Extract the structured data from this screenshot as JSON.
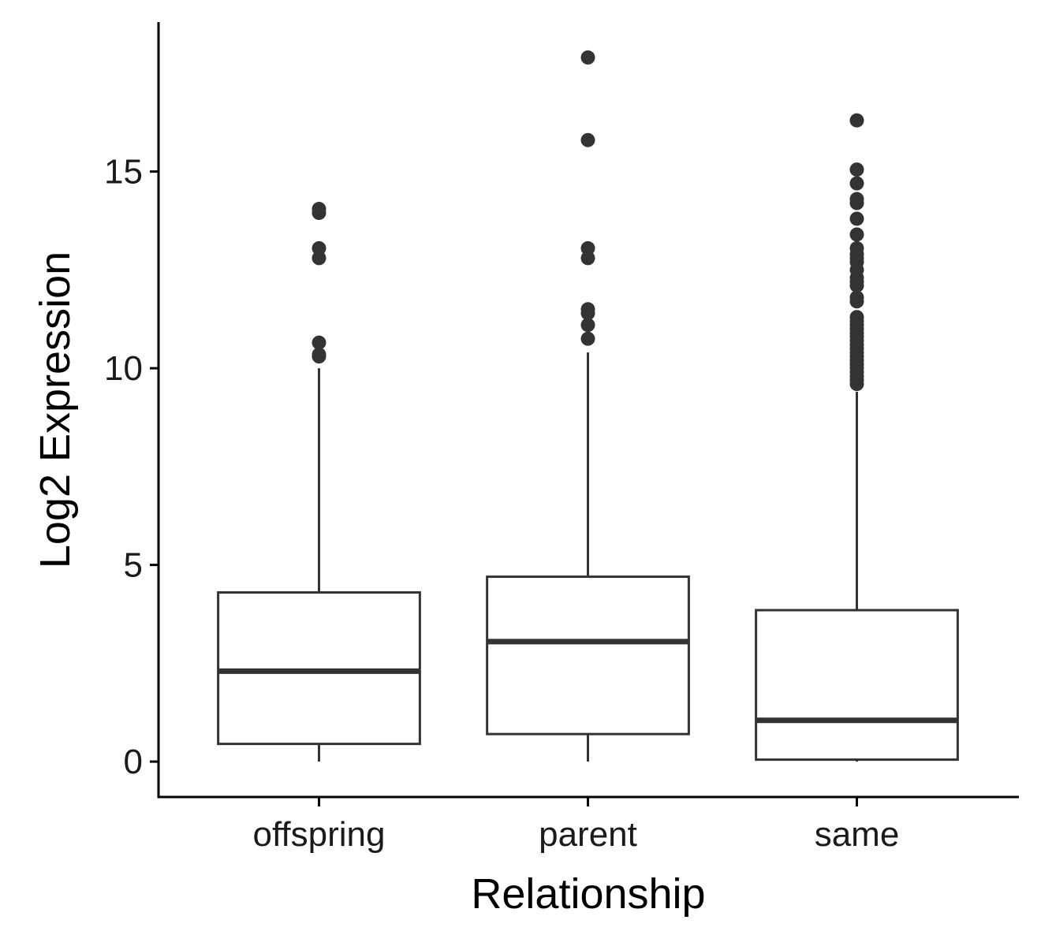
{
  "chart_data": {
    "type": "boxplot",
    "title": "",
    "xlabel": "Relationship",
    "ylabel": "Log2 Expression",
    "ylim": [
      -0.9,
      18.8
    ],
    "y_ticks": [
      0,
      5,
      10,
      15
    ],
    "y_tick_labels": [
      "0",
      "5",
      "10",
      "15"
    ],
    "categories": [
      "offspring",
      "parent",
      "same"
    ],
    "grid": false,
    "legend": "none",
    "colors": {
      "box_stroke": "#333333",
      "box_fill": "#ffffff",
      "axis": "#000000"
    },
    "boxes": [
      {
        "name": "offspring",
        "whisker_low": 0,
        "q1": 0.45,
        "median": 2.3,
        "q3": 4.3,
        "whisker_high": 10.0,
        "outliers": [
          10.3,
          10.35,
          10.65,
          12.8,
          13.05,
          13.95,
          14.05
        ]
      },
      {
        "name": "parent",
        "whisker_low": 0,
        "q1": 0.7,
        "median": 3.05,
        "q3": 4.7,
        "whisker_high": 10.4,
        "outliers": [
          10.75,
          11.1,
          11.4,
          11.5,
          12.8,
          13.05,
          15.8,
          17.9
        ]
      },
      {
        "name": "same",
        "whisker_low": 0,
        "q1": 0.05,
        "median": 1.05,
        "q3": 3.85,
        "whisker_high": 9.4,
        "outliers": [
          9.6,
          9.7,
          9.8,
          9.9,
          10.0,
          10.1,
          10.2,
          10.3,
          10.4,
          10.5,
          10.6,
          10.7,
          10.8,
          10.9,
          11.0,
          11.1,
          11.2,
          11.3,
          11.7,
          11.8,
          12.1,
          12.2,
          12.3,
          12.5,
          12.7,
          12.8,
          12.9,
          13.05,
          13.4,
          13.8,
          14.2,
          14.3,
          14.7,
          15.05,
          16.3
        ]
      }
    ]
  }
}
